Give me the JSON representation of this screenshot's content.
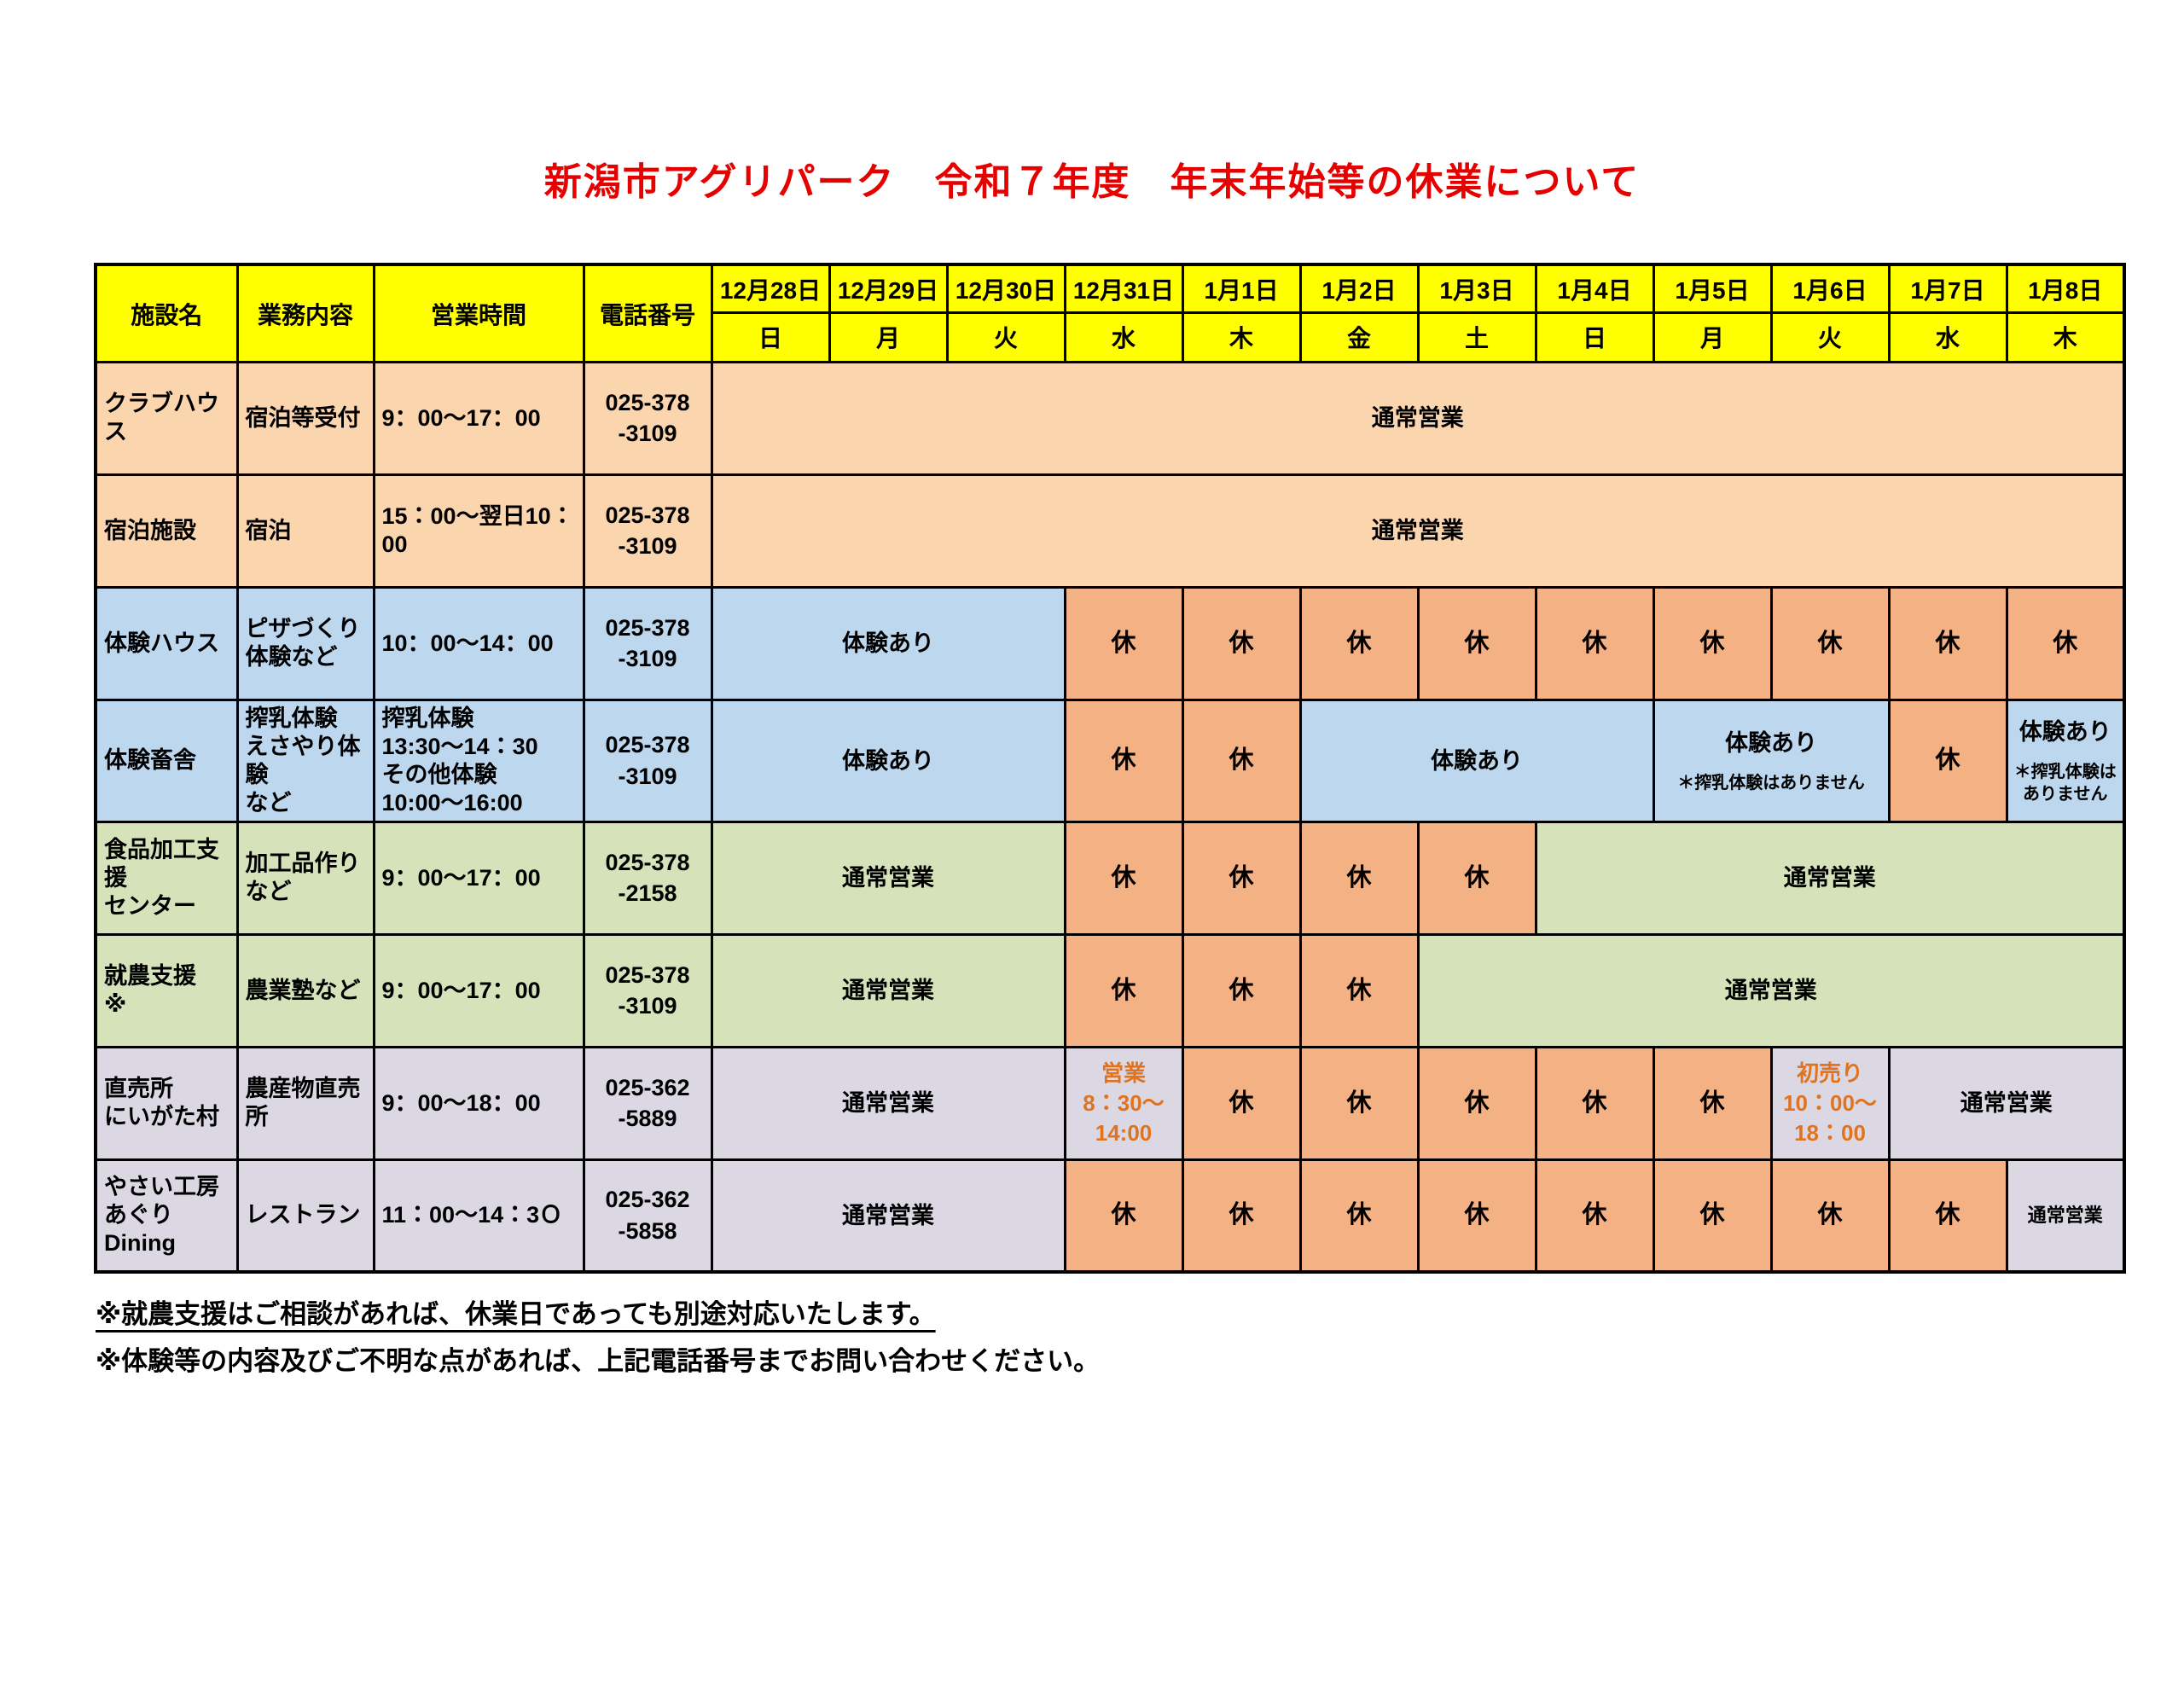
{
  "title": "新潟市アグリパーク　令和７年度　年末年始等の休業について",
  "colors": {
    "header_bg": "#ffff00",
    "group_peach": "#fbd5ae",
    "group_blue": "#bdd7ee",
    "group_green": "#d6e3ba",
    "group_lavender": "#dbd8e4",
    "holiday_bg": "#f4b183",
    "accent_text": "#e2731e",
    "title_red": "#e60000"
  },
  "header": {
    "facility": "施設名",
    "business": "業務内容",
    "hours": "営業時間",
    "phone": "電話番号",
    "dates": [
      "12月28日",
      "12月29日",
      "12月30日",
      "12月31日",
      "1月1日",
      "1月2日",
      "1月3日",
      "1月4日",
      "1月5日",
      "1月6日",
      "1月7日",
      "1月8日"
    ],
    "days": [
      "日",
      "月",
      "火",
      "水",
      "木",
      "金",
      "土",
      "日",
      "月",
      "火",
      "水",
      "木"
    ]
  },
  "rows": [
    {
      "facility": "クラブハウス",
      "business": "宿泊等受付",
      "hours": "9：00～17：00",
      "phone": "025-378\n-3109",
      "group": "peach",
      "schedule": [
        {
          "label": "通常営業",
          "span": 12
        }
      ]
    },
    {
      "facility": "宿泊施設",
      "business": "宿泊",
      "hours": "15：00～翌日10：00",
      "phone": "025-378\n-3109",
      "group": "peach",
      "schedule": [
        {
          "label": "通常営業",
          "span": 12
        }
      ]
    },
    {
      "facility": "体験ハウス",
      "business": "ピザづくり\n体験など",
      "hours": "10：00～14：00",
      "phone": "025-378\n-3109",
      "group": "blue",
      "schedule": [
        {
          "label": "体験あり",
          "span": 3
        },
        {
          "label": "休",
          "span": 1,
          "holiday": true
        },
        {
          "label": "休",
          "span": 1,
          "holiday": true
        },
        {
          "label": "休",
          "span": 1,
          "holiday": true
        },
        {
          "label": "休",
          "span": 1,
          "holiday": true
        },
        {
          "label": "休",
          "span": 1,
          "holiday": true
        },
        {
          "label": "休",
          "span": 1,
          "holiday": true
        },
        {
          "label": "休",
          "span": 1,
          "holiday": true
        },
        {
          "label": "休",
          "span": 1,
          "holiday": true
        },
        {
          "label": "休",
          "span": 1,
          "holiday": true
        }
      ]
    },
    {
      "facility": "体験畜舎",
      "business": "搾乳体験\nえさやり体験\nなど",
      "hours": "搾乳体験\n13:30～14：30\nその他体験\n10:00～16:00",
      "phone": "025-378\n-3109",
      "group": "blue",
      "schedule": [
        {
          "label": "体験あり",
          "span": 3
        },
        {
          "label": "休",
          "span": 1,
          "holiday": true
        },
        {
          "label": "休",
          "span": 1,
          "holiday": true
        },
        {
          "label": "体験あり",
          "span": 3
        },
        {
          "label": "体験あり",
          "note": "＊搾乳体験はありません",
          "span": 2
        },
        {
          "label": "休",
          "span": 1,
          "holiday": true
        },
        {
          "label": "体験あり",
          "note": "＊搾乳体験は\nありません",
          "span": 1
        }
      ]
    },
    {
      "facility": "食品加工支援\nセンター",
      "business": "加工品作り\nなど",
      "hours": "9：00～17：00",
      "phone": "025-378\n-2158",
      "group": "green",
      "schedule": [
        {
          "label": "通常営業",
          "span": 3
        },
        {
          "label": "休",
          "span": 1,
          "holiday": true
        },
        {
          "label": "休",
          "span": 1,
          "holiday": true
        },
        {
          "label": "休",
          "span": 1,
          "holiday": true
        },
        {
          "label": "休",
          "span": 1,
          "holiday": true
        },
        {
          "label": "通常営業",
          "span": 5
        }
      ]
    },
    {
      "facility": "就農支援　※",
      "business": "農業塾など",
      "hours": "9：00～17：00",
      "phone": "025-378\n-3109",
      "group": "green",
      "schedule": [
        {
          "label": "通常営業",
          "span": 3
        },
        {
          "label": "休",
          "span": 1,
          "holiday": true
        },
        {
          "label": "休",
          "span": 1,
          "holiday": true
        },
        {
          "label": "休",
          "span": 1,
          "holiday": true
        },
        {
          "label": "通常営業",
          "span": 6
        }
      ]
    },
    {
      "facility": "直売所\nにいがた村",
      "business": "農産物直売所",
      "hours": "9：00～18：00",
      "phone": "025-362\n-5889",
      "group": "lav",
      "schedule": [
        {
          "label": "通常営業",
          "span": 3
        },
        {
          "label": "営業\n8：30～\n14:00",
          "span": 1,
          "accent": true
        },
        {
          "label": "休",
          "span": 1,
          "holiday": true
        },
        {
          "label": "休",
          "span": 1,
          "holiday": true
        },
        {
          "label": "休",
          "span": 1,
          "holiday": true
        },
        {
          "label": "休",
          "span": 1,
          "holiday": true
        },
        {
          "label": "休",
          "span": 1,
          "holiday": true
        },
        {
          "label": "初売り\n10：00～\n18：00",
          "span": 1,
          "accent": true
        },
        {
          "label": "通常営業",
          "span": 2
        }
      ]
    },
    {
      "facility": "やさい工房\nあぐりDining",
      "business": "レストラン",
      "hours": "11：00～14：3Ｏ",
      "phone": "025-362\n-5858",
      "group": "lav",
      "schedule": [
        {
          "label": "通常営業",
          "span": 3
        },
        {
          "label": "休",
          "span": 1,
          "holiday": true
        },
        {
          "label": "休",
          "span": 1,
          "holiday": true
        },
        {
          "label": "休",
          "span": 1,
          "holiday": true
        },
        {
          "label": "休",
          "span": 1,
          "holiday": true
        },
        {
          "label": "休",
          "span": 1,
          "holiday": true
        },
        {
          "label": "休",
          "span": 1,
          "holiday": true
        },
        {
          "label": "休",
          "span": 1,
          "holiday": true
        },
        {
          "label": "休",
          "span": 1,
          "holiday": true
        },
        {
          "label": "通常営業",
          "span": 1,
          "small": true
        }
      ]
    }
  ],
  "notes": [
    "※就農支援はご相談があれば、休業日であっても別途対応いたします。",
    "※体験等の内容及びご不明な点があれば、上記電話番号までお問い合わせください。"
  ]
}
